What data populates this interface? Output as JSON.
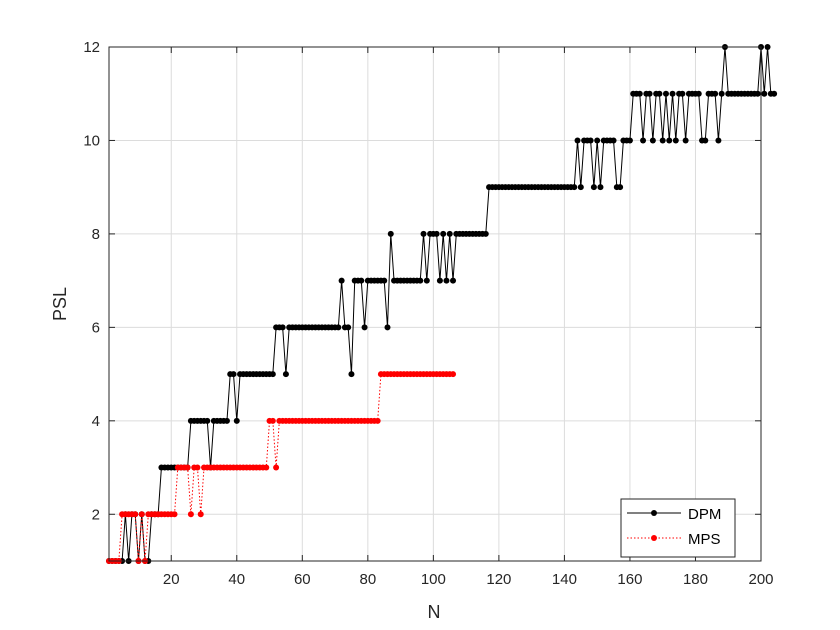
{
  "chart_data": {
    "type": "line",
    "xlabel": "N",
    "ylabel": "PSL",
    "xlim": [
      1,
      200
    ],
    "ylim": [
      1,
      12
    ],
    "xticks": [
      20,
      40,
      60,
      80,
      100,
      120,
      140,
      160,
      180,
      200
    ],
    "yticks": [
      2,
      4,
      6,
      8,
      10,
      12
    ],
    "grid": true,
    "legend_placement": "bottom-right",
    "series": [
      {
        "name": "DPM",
        "color": "#000000",
        "line_style": "solid",
        "marker": "dot",
        "x_start": 1,
        "values": [
          1,
          1,
          1,
          1,
          1,
          2,
          1,
          2,
          2,
          1,
          2,
          1,
          1,
          2,
          2,
          2,
          3,
          3,
          3,
          3,
          3,
          3,
          3,
          3,
          3,
          4,
          4,
          4,
          4,
          4,
          4,
          3,
          4,
          4,
          4,
          4,
          4,
          5,
          5,
          4,
          5,
          5,
          5,
          5,
          5,
          5,
          5,
          5,
          5,
          5,
          5,
          6,
          6,
          6,
          5,
          6,
          6,
          6,
          6,
          6,
          6,
          6,
          6,
          6,
          6,
          6,
          6,
          6,
          6,
          6,
          6,
          7,
          6,
          6,
          5,
          7,
          7,
          7,
          6,
          7,
          7,
          7,
          7,
          7,
          7,
          6,
          8,
          7,
          7,
          7,
          7,
          7,
          7,
          7,
          7,
          7,
          8,
          7,
          8,
          8,
          8,
          7,
          8,
          7,
          8,
          7,
          8,
          8,
          8,
          8,
          8,
          8,
          8,
          8,
          8,
          8,
          9,
          9,
          9,
          9,
          9,
          9,
          9,
          9,
          9,
          9,
          9,
          9,
          9,
          9,
          9,
          9,
          9,
          9,
          9,
          9,
          9,
          9,
          9,
          9,
          9,
          9,
          9,
          10,
          9,
          10,
          10,
          10,
          9,
          10,
          9,
          10,
          10,
          10,
          10,
          9,
          9,
          10,
          10,
          10,
          11,
          11,
          11,
          10,
          11,
          11,
          10,
          11,
          11,
          10,
          11,
          10,
          11,
          10,
          11,
          11,
          10,
          11,
          11,
          11,
          11,
          10,
          10,
          11,
          11,
          11,
          10,
          11,
          12,
          11,
          11,
          11,
          11,
          11,
          11,
          11,
          11,
          11,
          11,
          12,
          11,
          12,
          11,
          11
        ]
      },
      {
        "name": "MPS",
        "color": "#ff0000",
        "line_style": "dotted",
        "marker": "dot",
        "x_start": 1,
        "values": [
          1,
          1,
          1,
          1,
          2,
          2,
          2,
          2,
          2,
          1,
          2,
          1,
          2,
          2,
          2,
          2,
          2,
          2,
          2,
          2,
          2,
          3,
          3,
          3,
          3,
          2,
          3,
          3,
          2,
          3,
          3,
          3,
          3,
          3,
          3,
          3,
          3,
          3,
          3,
          3,
          3,
          3,
          3,
          3,
          3,
          3,
          3,
          3,
          3,
          4,
          4,
          3,
          4,
          4,
          4,
          4,
          4,
          4,
          4,
          4,
          4,
          4,
          4,
          4,
          4,
          4,
          4,
          4,
          4,
          4,
          4,
          4,
          4,
          4,
          4,
          4,
          4,
          4,
          4,
          4,
          4,
          4,
          4,
          5,
          5,
          5,
          5,
          5,
          5,
          5,
          5,
          5,
          5,
          5,
          5,
          5,
          5,
          5,
          5,
          5,
          5,
          5,
          5,
          5,
          5,
          5
        ]
      }
    ]
  }
}
